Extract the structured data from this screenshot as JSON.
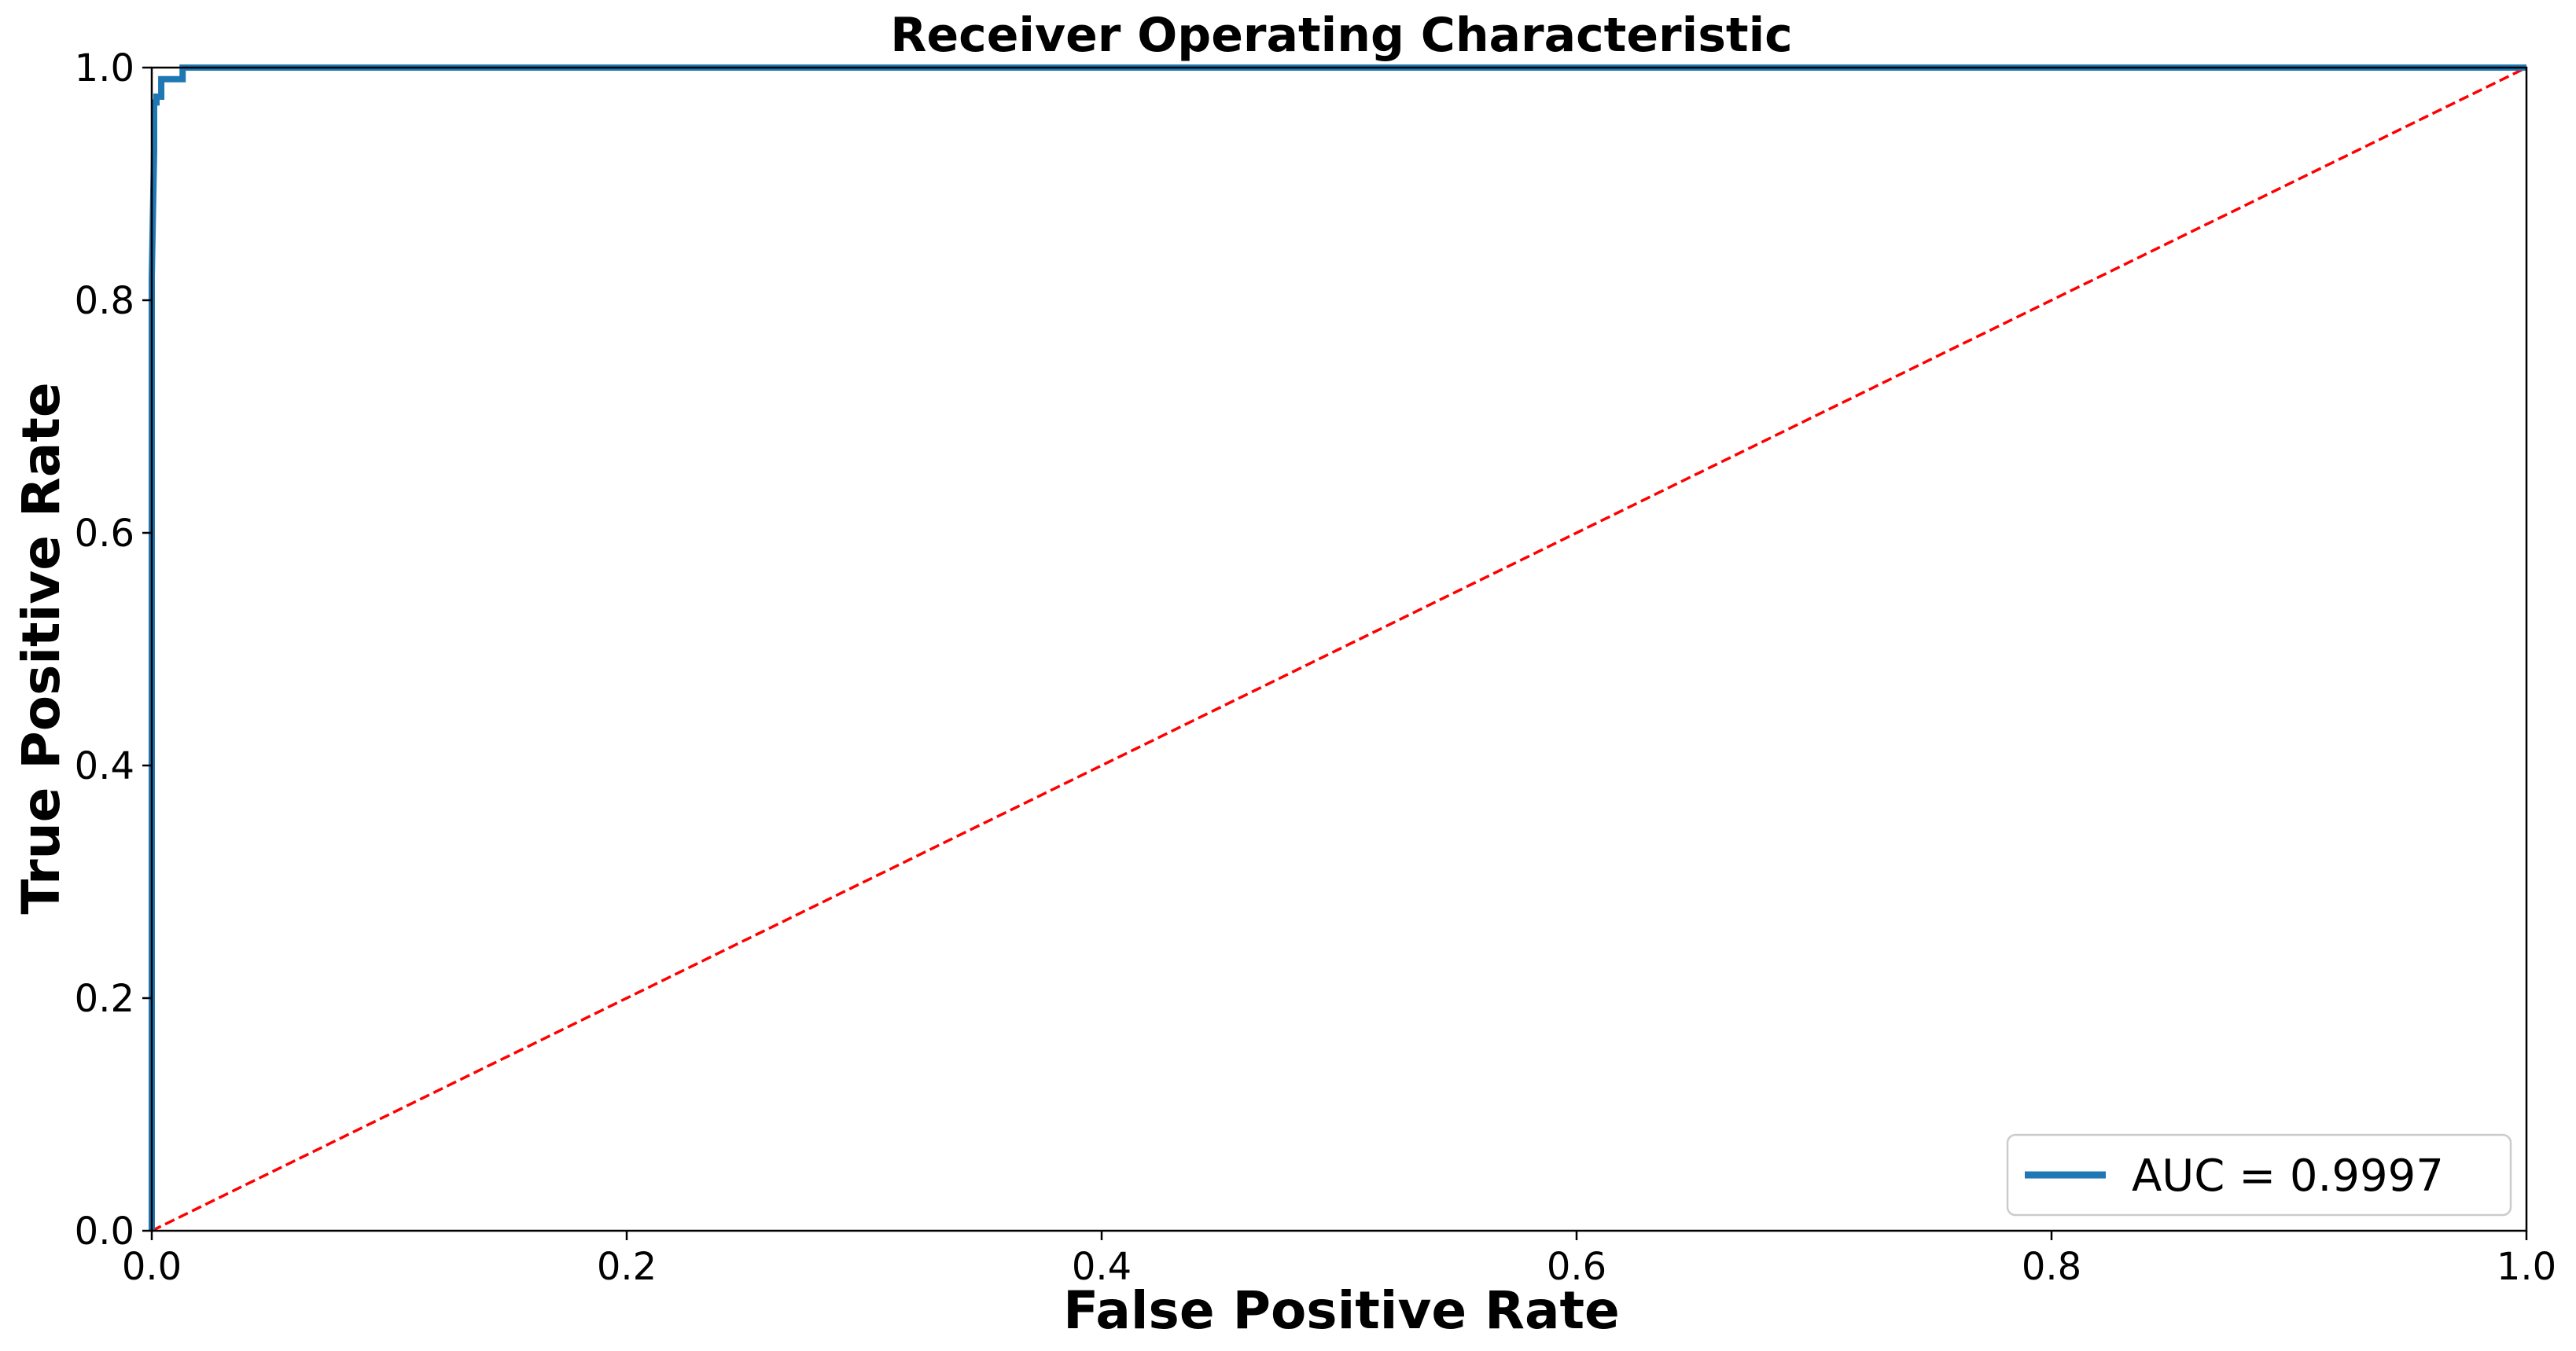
{
  "chart_data": {
    "type": "line",
    "title": "Receiver Operating Characteristic",
    "xlabel": "False Positive Rate",
    "ylabel": "True Positive Rate",
    "xlim": [
      0.0,
      1.0
    ],
    "ylim": [
      0.0,
      1.0
    ],
    "xticks": [
      "0.0",
      "0.2",
      "0.4",
      "0.6",
      "0.8",
      "1.0"
    ],
    "yticks": [
      "0.0",
      "0.2",
      "0.4",
      "0.6",
      "0.8",
      "1.0"
    ],
    "grid": false,
    "legend_position": "lower-right",
    "series": [
      {
        "name": "AUC = 0.9997",
        "color": "#1f77b4",
        "style": "solid",
        "x": [
          0.0,
          0.0,
          0.001,
          0.001,
          0.002,
          0.002,
          0.004,
          0.004,
          0.013,
          0.013,
          1.0
        ],
        "y": [
          0.0,
          0.82,
          0.93,
          0.97,
          0.97,
          0.975,
          0.975,
          0.99,
          0.99,
          1.0,
          1.0
        ]
      },
      {
        "name": "",
        "color": "#ff0000",
        "style": "dashed",
        "x": [
          0.0,
          1.0
        ],
        "y": [
          0.0,
          1.0
        ]
      }
    ]
  }
}
